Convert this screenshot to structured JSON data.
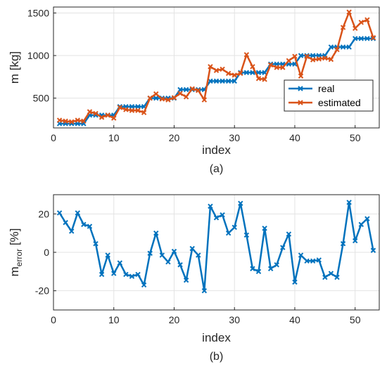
{
  "chart_data": [
    {
      "type": "line",
      "caption": "(a)",
      "xlabel": "index",
      "ylabel": "m [kg]",
      "xlim": [
        0,
        54
      ],
      "ylim": [
        150,
        1570
      ],
      "xticks": [
        0,
        10,
        20,
        30,
        40,
        50
      ],
      "yticks": [
        500,
        1000,
        1500
      ],
      "grid": true,
      "legend_position": "lower-right",
      "x": [
        1,
        2,
        3,
        4,
        5,
        6,
        7,
        8,
        9,
        10,
        11,
        12,
        13,
        14,
        15,
        16,
        17,
        18,
        19,
        20,
        21,
        22,
        23,
        24,
        25,
        26,
        27,
        28,
        29,
        30,
        31,
        32,
        33,
        34,
        35,
        36,
        37,
        38,
        39,
        40,
        41,
        42,
        43,
        44,
        45,
        46,
        47,
        48,
        49,
        50,
        51,
        52,
        53
      ],
      "series": [
        {
          "name": "real",
          "color": "#0072BD",
          "marker": "x",
          "values": [
            200,
            200,
            200,
            200,
            200,
            300,
            300,
            300,
            300,
            300,
            400,
            400,
            400,
            400,
            400,
            500,
            500,
            500,
            500,
            500,
            600,
            600,
            600,
            600,
            600,
            700,
            700,
            700,
            700,
            700,
            800,
            800,
            800,
            800,
            800,
            900,
            900,
            900,
            900,
            900,
            1000,
            1000,
            1000,
            1000,
            1000,
            1100,
            1100,
            1100,
            1100,
            1200,
            1200,
            1200,
            1200
          ]
        },
        {
          "name": "estimated",
          "color": "#D95319",
          "marker": "x",
          "values": [
            240,
            230,
            222,
            240,
            230,
            340,
            320,
            275,
            300,
            265,
            390,
            365,
            355,
            355,
            330,
            500,
            550,
            490,
            480,
            505,
            555,
            515,
            610,
            590,
            480,
            870,
            825,
            840,
            790,
            770,
            790,
            1010,
            870,
            730,
            720,
            890,
            860,
            860,
            940,
            990,
            760,
            990,
            950,
            960,
            970,
            955,
            1070,
            1330,
            1510,
            1320,
            1390,
            1420,
            1210
          ]
        }
      ]
    },
    {
      "type": "line",
      "caption": "(b)",
      "xlabel": "index",
      "ylabel_main": "m",
      "ylabel_sub": "error",
      "ylabel_unit": " [%]",
      "xlim": [
        0,
        54
      ],
      "ylim": [
        -30,
        30
      ],
      "xticks": [
        0,
        10,
        20,
        30,
        40,
        50
      ],
      "yticks": [
        -20,
        0,
        20
      ],
      "grid": true,
      "x": [
        1,
        2,
        3,
        4,
        5,
        6,
        7,
        8,
        9,
        10,
        11,
        12,
        13,
        14,
        15,
        16,
        17,
        18,
        19,
        20,
        21,
        22,
        23,
        24,
        25,
        26,
        27,
        28,
        29,
        30,
        31,
        32,
        33,
        34,
        35,
        36,
        37,
        38,
        39,
        40,
        41,
        42,
        43,
        44,
        45,
        46,
        47,
        48,
        49,
        50,
        51,
        52,
        53
      ],
      "series": [
        {
          "color": "#0072BD",
          "marker": "x",
          "values": [
            20.5,
            15.5,
            11,
            20.5,
            14.5,
            13.5,
            4.5,
            -11.5,
            -1.5,
            -11,
            -5.5,
            -11.5,
            -12.5,
            -11.5,
            -17,
            -0.5,
            10,
            -1.5,
            -5,
            0.5,
            -6.5,
            -14.5,
            2,
            -1.5,
            -20,
            24,
            18,
            19.5,
            10,
            13,
            25.5,
            9,
            -8.5,
            -10,
            12.5,
            -8.5,
            -6.5,
            2.5,
            9.5,
            -15.5,
            -1.5,
            -4.5,
            -4.5,
            -4,
            -13,
            -11,
            -13,
            4.5,
            26,
            6,
            14.5,
            17.5,
            1
          ]
        }
      ]
    }
  ]
}
